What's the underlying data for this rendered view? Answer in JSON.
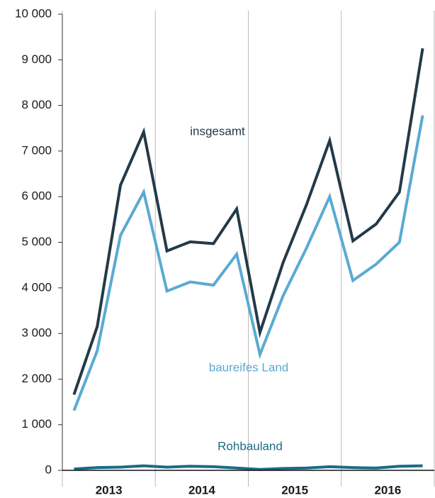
{
  "chart_data": {
    "type": "line",
    "groups": [
      "2013",
      "2014",
      "2015",
      "2016"
    ],
    "categories": [
      null,
      null,
      null,
      null,
      null,
      null,
      null,
      null,
      null,
      null,
      null,
      null,
      null,
      null,
      null,
      null
    ],
    "series": [
      {
        "name": "insgesamt",
        "color": "#233a48",
        "values": [
          1660,
          3150,
          6250,
          7420,
          4810,
          5010,
          4970,
          5730,
          3020,
          4560,
          5820,
          7230,
          5030,
          5400,
          6100,
          9250
        ]
      },
      {
        "name": "baureifes Land",
        "color": "#5aaad3",
        "values": [
          1310,
          2620,
          5150,
          6100,
          3930,
          4130,
          4060,
          4740,
          2540,
          3830,
          4870,
          6000,
          4160,
          4520,
          5000,
          7780
        ]
      },
      {
        "name": "Rohbauland",
        "color": "#1a6b86",
        "values": [
          30,
          60,
          70,
          100,
          70,
          90,
          80,
          50,
          20,
          40,
          50,
          80,
          60,
          50,
          90,
          100
        ]
      }
    ],
    "ylim": [
      0,
      10000
    ],
    "yticks": [
      0,
      {
        "value": 1000,
        "label": "1 000"
      },
      {
        "value": 2000,
        "label": "2 000"
      },
      {
        "value": 3000,
        "label": "3 000"
      },
      {
        "value": 4000,
        "label": "4 000"
      },
      {
        "value": 5000,
        "label": "5 000"
      },
      {
        "value": 6000,
        "label": "6 000"
      },
      {
        "value": 7000,
        "label": "7 000"
      },
      {
        "value": 8000,
        "label": "8 000"
      },
      {
        "value": 9000,
        "label": "9 000"
      },
      {
        "value": 10000,
        "label": "10 000"
      }
    ]
  }
}
